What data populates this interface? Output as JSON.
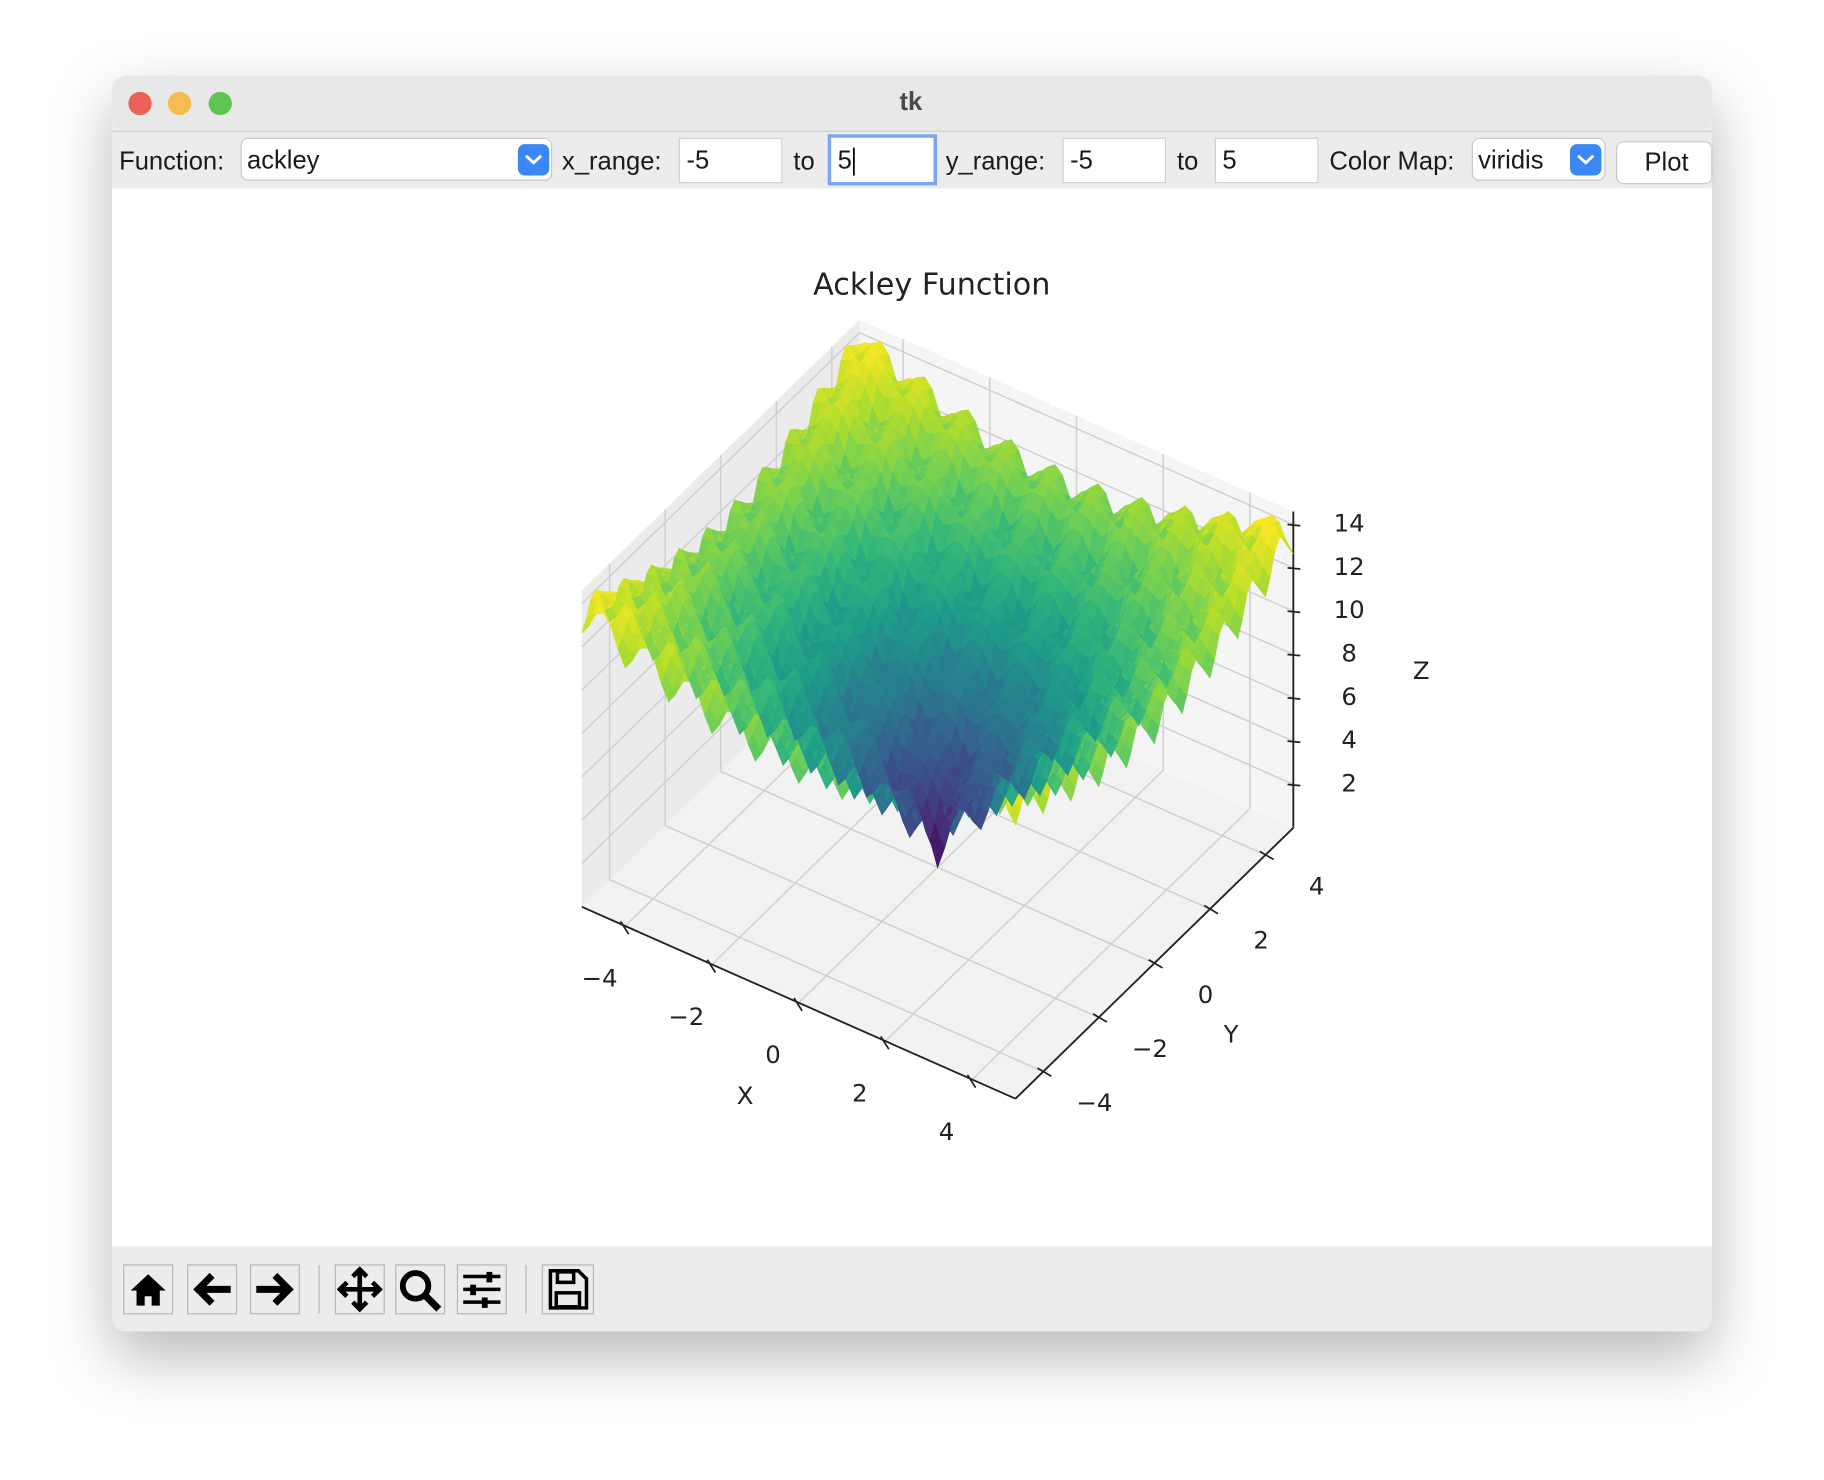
{
  "window": {
    "title": "tk"
  },
  "controls": {
    "function_label": "Function:",
    "function_value": "ackley",
    "x_range_label": "x_range:",
    "x_min": "-5",
    "to_x": "to",
    "x_max": "5",
    "y_range_label": "y_range:",
    "y_min": "-5",
    "to_y": "to",
    "y_max": "5",
    "colormap_label": "Color Map:",
    "colormap_value": "viridis",
    "plot_button": "Plot"
  },
  "chart_data": {
    "type": "surface3d",
    "title": "Ackley Function",
    "xlabel": "X",
    "ylabel": "Y",
    "zlabel": "Z",
    "xlim": [
      -5,
      5
    ],
    "ylim": [
      -5,
      5
    ],
    "zlim": [
      0,
      14.6
    ],
    "xticks": [
      {
        "value": -4,
        "label": "−4"
      },
      {
        "value": -2,
        "label": "−2"
      },
      0,
      2,
      4
    ],
    "yticks": [
      {
        "value": -4,
        "label": "−4"
      },
      {
        "value": -2,
        "label": "−2"
      },
      0,
      2,
      4
    ],
    "zticks": [
      2,
      4,
      6,
      8,
      10,
      12,
      14
    ],
    "grid": true
  }
}
